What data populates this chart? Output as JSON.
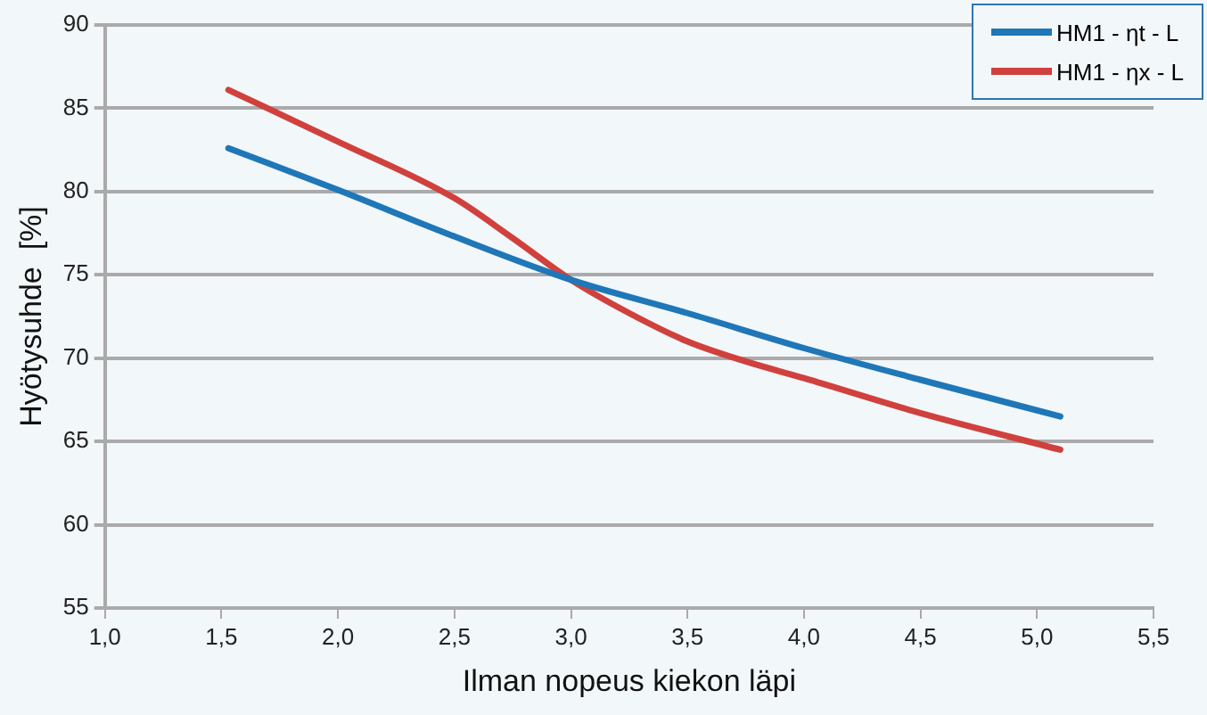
{
  "chart_data": {
    "type": "line",
    "xlabel": "Ilman nopeus kiekon läpi",
    "ylabel": "Hyötysuhde  [%]",
    "xlim": [
      1.0,
      5.5
    ],
    "xticks": [
      {
        "value": 1.0,
        "label": "1,0"
      },
      {
        "value": 1.5,
        "label": "1,5"
      },
      {
        "value": 2.0,
        "label": "2,0"
      },
      {
        "value": 2.5,
        "label": "2,5"
      },
      {
        "value": 3.0,
        "label": "3,0"
      },
      {
        "value": 3.5,
        "label": "3,5"
      },
      {
        "value": 4.0,
        "label": "4,0"
      },
      {
        "value": 4.5,
        "label": "4,5"
      },
      {
        "value": 5.0,
        "label": "5,0"
      },
      {
        "value": 5.5,
        "label": "5,5"
      }
    ],
    "ylim": [
      55,
      90
    ],
    "yticks": [
      55,
      60,
      65,
      70,
      75,
      80,
      85,
      90
    ],
    "grid": "y",
    "legend": "top right",
    "marker": "none",
    "line_style": "solid",
    "series": [
      {
        "name": "HM1 - ηt - L",
        "color": "#1f77b8",
        "x": [
          1.53,
          2.0,
          2.5,
          3.0,
          3.5,
          4.0,
          4.5,
          5.1
        ],
        "values": [
          82.6,
          80.1,
          77.3,
          74.7,
          72.7,
          70.6,
          68.7,
          66.5
        ]
      },
      {
        "name": "HM1 - ηx - L",
        "color": "#d0413e",
        "x": [
          1.53,
          2.0,
          2.5,
          2.75,
          3.0,
          3.25,
          3.5,
          3.75,
          4.0,
          4.5,
          5.1
        ],
        "values": [
          86.1,
          83.0,
          79.6,
          77.2,
          74.7,
          72.7,
          71.0,
          69.8,
          68.8,
          66.7,
          64.5
        ]
      }
    ]
  }
}
